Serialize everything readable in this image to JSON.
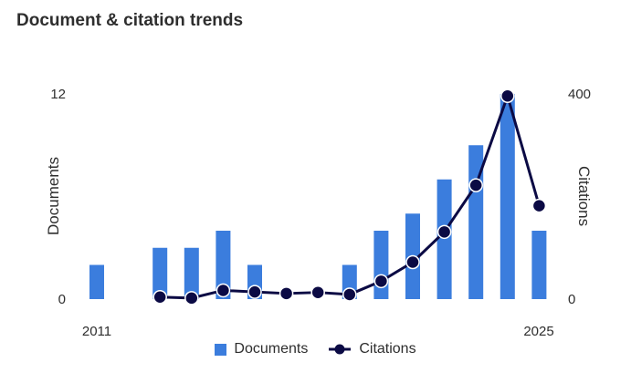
{
  "card": {
    "title": "Document & citation trends"
  },
  "chart_data": {
    "type": "bar+line",
    "years": [
      2011,
      2012,
      2013,
      2014,
      2015,
      2016,
      2017,
      2018,
      2019,
      2020,
      2021,
      2022,
      2023,
      2024,
      2025
    ],
    "x_tick_labels": [
      "2011",
      "2025"
    ],
    "series": [
      {
        "name": "Documents",
        "type": "bar",
        "axis": "left",
        "color": "#3b7ddd",
        "values": [
          2,
          0,
          3,
          3,
          4,
          2,
          0,
          0,
          2,
          4,
          5,
          7,
          9,
          12,
          4
        ]
      },
      {
        "name": "Citations",
        "type": "line",
        "axis": "right",
        "color": "#0b0a44",
        "values": [
          null,
          null,
          4,
          2,
          17,
          14,
          11,
          13,
          9,
          35,
          72,
          131,
          222,
          396,
          182
        ]
      }
    ],
    "y_left": {
      "label": "Documents",
      "range": [
        0,
        12
      ],
      "ticks": [
        0,
        12
      ]
    },
    "y_right": {
      "label": "Citations",
      "range": [
        0,
        400
      ],
      "ticks": [
        0,
        400
      ]
    },
    "legend_position": "bottom"
  },
  "legend": {
    "documents_label": "Documents",
    "citations_label": "Citations"
  }
}
